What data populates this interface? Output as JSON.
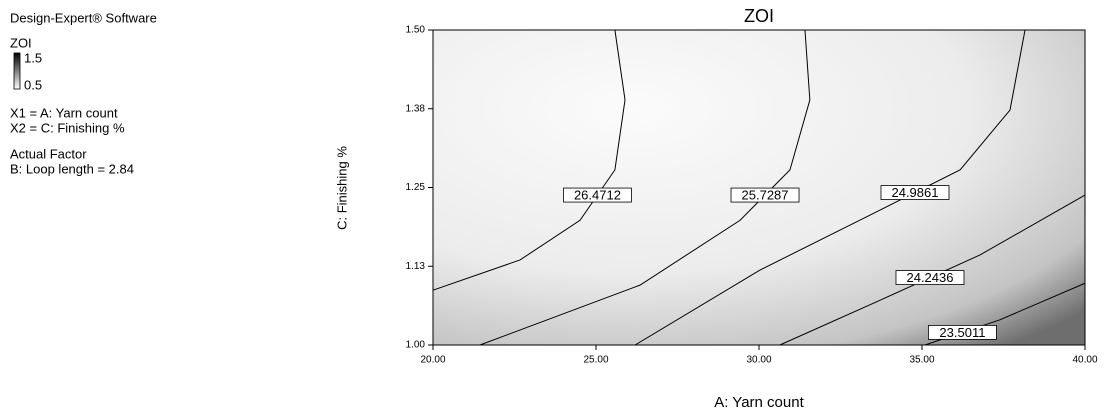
{
  "chart_data": {
    "type": "contour",
    "software": "Design-Expert® Software",
    "legend_title": "ZOI",
    "colorbar": {
      "max": 1.5,
      "min": 0.5
    },
    "factor_x_note": "X1 = A: Yarn count",
    "factor_y_note": "X2 = C: Finishing %",
    "actual_factor_heading": "Actual Factor",
    "actual_factor": "B: Loop length = 2.84",
    "title": "ZOI",
    "x_label": "A: Yarn count",
    "y_label": "C: Finishing %",
    "xlim": [
      20,
      40
    ],
    "ylim": [
      1.0,
      1.5
    ],
    "xticks": [
      {
        "value": 20,
        "label": "20.00"
      },
      {
        "value": 25,
        "label": "25.00"
      },
      {
        "value": 30,
        "label": "30.00"
      },
      {
        "value": 35,
        "label": "35.00"
      },
      {
        "value": 40,
        "label": "40.00"
      }
    ],
    "yticks": [
      {
        "value": 1.0,
        "label": "1.00"
      },
      {
        "value": 1.125,
        "label": "1.13"
      },
      {
        "value": 1.25,
        "label": "1.25"
      },
      {
        "value": 1.375,
        "label": "1.38"
      },
      {
        "value": 1.5,
        "label": "1.50"
      }
    ],
    "contours": [
      {
        "level": 26.4712,
        "x": [
          25.58,
          25.89,
          25.58,
          24.51,
          22.67,
          20.0
        ],
        "y": [
          1.5,
          1.389,
          1.278,
          1.198,
          1.135,
          1.087
        ]
      },
      {
        "level": 25.7287,
        "x": [
          31.41,
          31.56,
          30.95,
          29.42,
          26.35,
          21.44
        ],
        "y": [
          1.5,
          1.389,
          1.278,
          1.198,
          1.095,
          1.0
        ]
      },
      {
        "level": 24.9861,
        "x": [
          38.16,
          37.7,
          36.17,
          33.4,
          30.03,
          26.2
        ],
        "y": [
          1.5,
          1.373,
          1.278,
          1.206,
          1.119,
          1.0
        ]
      },
      {
        "level": 24.2436,
        "x": [
          40.0,
          36.78,
          33.71,
          30.64
        ],
        "y": [
          1.238,
          1.143,
          1.071,
          1.0
        ]
      },
      {
        "level": 23.5011,
        "x": [
          40.0,
          37.39,
          35.09
        ],
        "y": [
          1.098,
          1.04,
          1.0
        ]
      }
    ]
  }
}
